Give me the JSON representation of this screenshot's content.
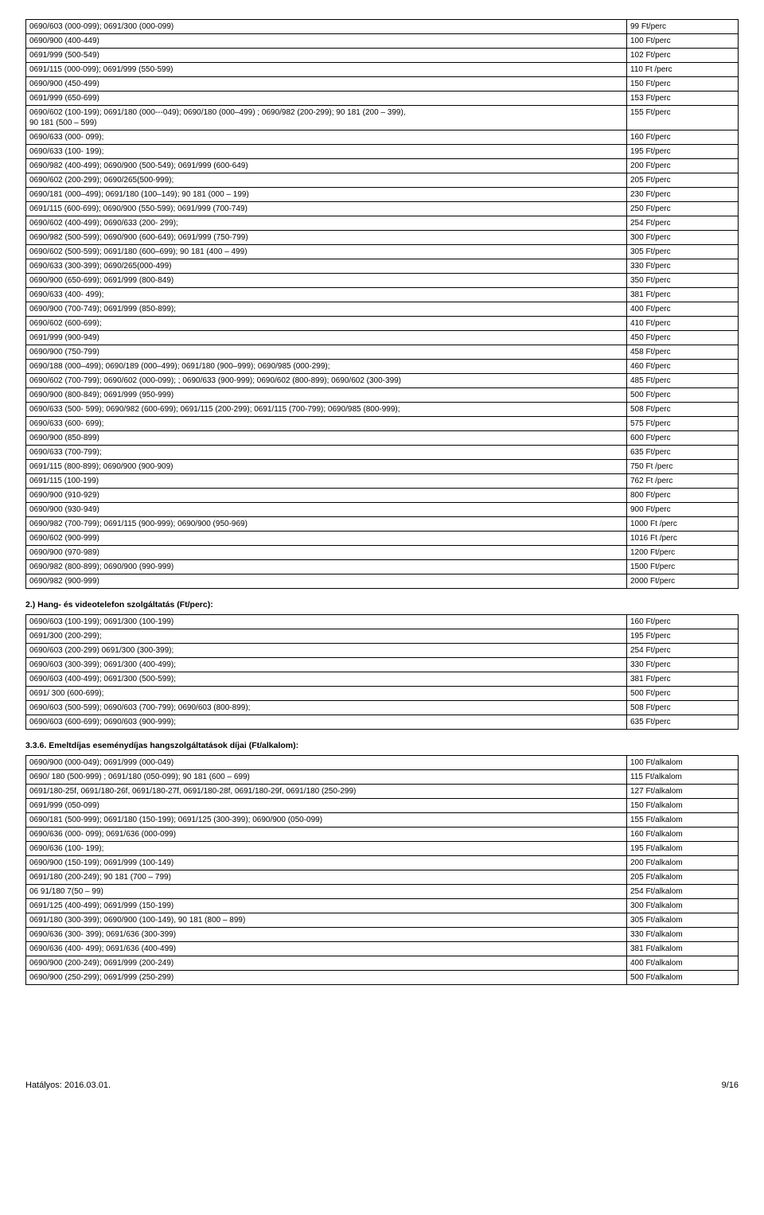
{
  "table1": {
    "rows": [
      {
        "desc": "0690/603 (000-099); 0691/300 (000-099)",
        "price": "99 Ft/perc"
      },
      {
        "desc": "0690/900 (400-449)",
        "price": "100 Ft/perc"
      },
      {
        "desc": "0691/999 (500-549)",
        "price": "102 Ft/perc"
      },
      {
        "desc": "0691/115 (000-099); 0691/999 (550-599)",
        "price": "110 Ft /perc"
      },
      {
        "desc": "0690/900 (450-499)",
        "price": "150 Ft/perc"
      },
      {
        "desc": "0691/999 (650-699)",
        "price": "153 Ft/perc"
      },
      {
        "desc": "0690/602 (100-199); 0691/180 (000---049); 0690/180 (000–499) ; 0690/982 (200-299); 90 181 (200 – 399),\n90 181 (500 – 599)",
        "price": "155 Ft/perc"
      },
      {
        "desc": "0690/633 (000- 099);",
        "price": "160 Ft/perc"
      },
      {
        "desc": "0690/633 (100- 199);",
        "price": "195 Ft/perc"
      },
      {
        "desc": "0690/982 (400-499); 0690/900 (500-549); 0691/999 (600-649)",
        "price": "200 Ft/perc"
      },
      {
        "desc": "0690/602 (200-299); 0690/265(500-999);",
        "price": "205 Ft/perc"
      },
      {
        "desc": "0690/181 (000–499); 0691/180 (100–149); 90 181 (000 – 199)",
        "price": "230 Ft/perc"
      },
      {
        "desc": "0691/115 (600-699); 0690/900 (550-599); 0691/999 (700-749)",
        "price": "250 Ft/perc"
      },
      {
        "desc": "0690/602 (400-499); 0690/633 (200- 299);",
        "price": "254 Ft/perc"
      },
      {
        "desc": " 0690/982 (500-599); 0690/900 (600-649); 0691/999 (750-799)",
        "price": "300 Ft/perc"
      },
      {
        "desc": "0690/602 (500-599); 0691/180 (600–699);  90 181 (400 – 499)",
        "price": "305 Ft/perc"
      },
      {
        "desc": "0690/633 (300-399); 0690/265(000-499)",
        "price": "330 Ft/perc"
      },
      {
        "desc": "0690/900 (650-699); 0691/999 (800-849)",
        "price": "350 Ft/perc"
      },
      {
        "desc": "0690/633 (400- 499);",
        "price": "381 Ft/perc"
      },
      {
        "desc": "0690/900 (700-749); 0691/999 (850-899);",
        "price": "400 Ft/perc"
      },
      {
        "desc": "0690/602 (600-699);",
        "price": "410 Ft/perc"
      },
      {
        "desc": "0691/999 (900-949)",
        "price": "450 Ft/perc"
      },
      {
        "desc": "0690/900 (750-799)",
        "price": "458 Ft/perc"
      },
      {
        "desc": "0690/188 (000–499); 0690/189 (000–499); 0691/180 (900–999); 0690/985 (000-299);",
        "price": "460 Ft/perc"
      },
      {
        "desc": "0690/602 (700-799); 0690/602 (000-099);  ; 0690/633 (900-999); 0690/602 (800-899); 0690/602 (300-399)",
        "price": "485 Ft/perc"
      },
      {
        "desc": "0690/900 (800-849); 0691/999 (950-999)",
        "price": "500 Ft/perc"
      },
      {
        "desc": "0690/633 (500- 599); 0690/982 (600-699); 0691/115 (200-299); 0691/115 (700-799); 0690/985 (800-999);",
        "price": "508 Ft/perc"
      },
      {
        "desc": "0690/633 (600- 699);",
        "price": "575 Ft/perc"
      },
      {
        "desc": "0690/900 (850-899)",
        "price": "600 Ft/perc"
      },
      {
        "desc": "0690/633 (700-799);",
        "price": "635 Ft/perc"
      },
      {
        "desc": "0691/115 (800-899); 0690/900 (900-909)",
        "price": "750 Ft /perc"
      },
      {
        "desc": "0691/115 (100-199)",
        "price": "762 Ft /perc"
      },
      {
        "desc": "0690/900 (910-929)",
        "price": "800 Ft/perc"
      },
      {
        "desc": "0690/900 (930-949)",
        "price": "900 Ft/perc"
      },
      {
        "desc": "0690/982 (700-799); 0691/115 (900-999); 0690/900 (950-969)",
        "price": "1000 Ft /perc"
      },
      {
        "desc": "0690/602 (900-999)",
        "price": "1016 Ft /perc"
      },
      {
        "desc": "0690/900 (970-989)",
        "price": "1200 Ft/perc"
      },
      {
        "desc": "0690/982 (800-899); 0690/900 (990-999)",
        "price": "1500 Ft/perc"
      },
      {
        "desc": "0690/982 (900-999)",
        "price": "2000 Ft/perc"
      }
    ]
  },
  "section2_title": "2.) Hang- és videotelefon szolgáltatás (Ft/perc):",
  "table2": {
    "rows": [
      {
        "desc": "0690/603 (100-199); 0691/300 (100-199)",
        "price": "160 Ft/perc"
      },
      {
        "desc": "0691/300 (200-299);",
        "price": "195 Ft/perc"
      },
      {
        "desc": "0690/603 (200-299) 0691/300 (300-399);",
        "price": "254 Ft/perc"
      },
      {
        "desc": "0690/603 (300-399); 0691/300 (400-499);",
        "price": "330 Ft/perc"
      },
      {
        "desc": "0690/603 (400-499); 0691/300 (500-599);",
        "price": "381 Ft/perc"
      },
      {
        "desc": "0691/ 300 (600-699);",
        "price": "500 Ft/perc"
      },
      {
        "desc": "0690/603 (500-599); 0690/603 (700-799); 0690/603 (800-899);",
        "price": "508 Ft/perc"
      },
      {
        "desc": "0690/603 (600-699); 0690/603 (900-999);",
        "price": "635 Ft/perc"
      }
    ]
  },
  "section3_title": "3.3.6. Emeltdíjas eseménydíjas hangszolgáltatások díjai (Ft/alkalom):",
  "table3": {
    "rows": [
      {
        "desc": "0690/900 (000-049); 0691/999 (000-049)",
        "price": "100 Ft/alkalom"
      },
      {
        "desc": "0690/ 180 (500-999) ; 0691/180 (050-099); 90 181 (600 – 699)",
        "price": "115 Ft/alkalom"
      },
      {
        "desc": "0691/180-25f, 0691/180-26f, 0691/180-27f, 0691/180-28f, 0691/180-29f, 0691/180 (250-299)",
        "price": "127 Ft/alkalom"
      },
      {
        "desc": "0691/999 (050-099)",
        "price": "150 Ft/alkalom"
      },
      {
        "desc": "0690/181 (500-999); 0691/180 (150-199); 0691/125 (300-399); 0690/900 (050-099)",
        "price": "155 Ft/alkalom"
      },
      {
        "desc": "0690/636 (000- 099); 0691/636 (000-099)",
        "price": "160 Ft/alkalom"
      },
      {
        "desc": "0690/636 (100- 199);",
        "price": "195 Ft/alkalom"
      },
      {
        "desc": "0690/900 (150-199); 0691/999 (100-149)",
        "price": "200 Ft/alkalom"
      },
      {
        "desc": "0691/180 (200-249); 90 181 (700 – 799)",
        "price": "205 Ft/alkalom"
      },
      {
        "desc": "06 91/180 7(50 – 99)",
        "price": "254 Ft/alkalom"
      },
      {
        "desc": "0691/125 (400-499); 0691/999 (150-199)",
        "price": "300 Ft/alkalom"
      },
      {
        "desc": "0691/180 (300-399);  0690/900 (100-149),  90 181 (800 – 899)",
        "price": "305 Ft/alkalom"
      },
      {
        "desc": "0690/636 (300- 399); 0691/636 (300-399)",
        "price": "330 Ft/alkalom"
      },
      {
        "desc": "0690/636 (400- 499); 0691/636 (400-499)",
        "price": "381 Ft/alkalom"
      },
      {
        "desc": "0690/900 (200-249); 0691/999 (200-249)",
        "price": "400 Ft/alkalom"
      },
      {
        "desc": "0690/900 (250-299); 0691/999 (250-299)",
        "price": "500 Ft/alkalom"
      }
    ]
  },
  "footer_left": "Hatályos: 2016.03.01.",
  "footer_right": "9/16"
}
